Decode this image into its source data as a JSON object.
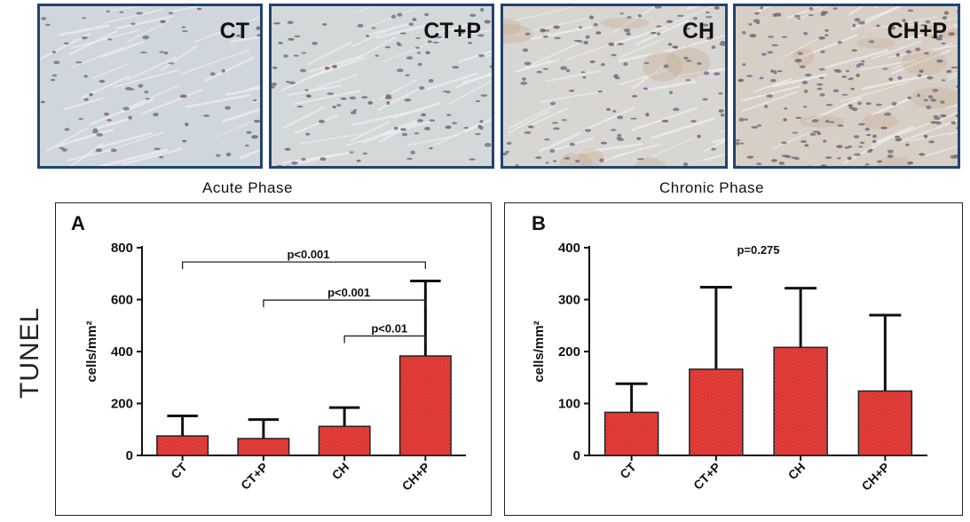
{
  "micrographs": [
    {
      "label": "CT",
      "tone": "#cfd7dc",
      "nuclei": 70
    },
    {
      "label": "CT+P",
      "tone": "#d3d8d9",
      "nuclei": 110
    },
    {
      "label": "CH",
      "tone": "#d8d6d2",
      "nuclei": 120
    },
    {
      "label": "CH+P",
      "tone": "#d7cfc6",
      "nuclei": 200
    }
  ],
  "phases": {
    "acute": "Acute Phase",
    "chronic": "Chronic Phase"
  },
  "row_label": "TUNEL",
  "colors": {
    "bar": "#e8403c",
    "bar_dots": "#b82825",
    "frame": "#22436f"
  },
  "chart_data": [
    {
      "type": "bar",
      "panel_letter": "A",
      "categories": [
        "CT",
        "CT+P",
        "CH",
        "CH+P"
      ],
      "values": [
        75,
        65,
        112,
        383
      ],
      "error_upper": [
        152,
        138,
        184,
        672
      ],
      "ylabel": "cells/mm²",
      "ylim": [
        0,
        800
      ],
      "yticks": [
        0,
        200,
        400,
        600,
        800
      ],
      "annotations": [
        {
          "text": "p<0.001",
          "from": "CT",
          "to": "CH+P",
          "y": 745
        },
        {
          "text": "p<0.001",
          "from": "CT+P",
          "to": "CH+P",
          "y": 598
        },
        {
          "text": "p<0.01",
          "from": "CH",
          "to": "CH+P",
          "y": 460
        }
      ]
    },
    {
      "type": "bar",
      "panel_letter": "B",
      "categories": [
        "CT",
        "CT+P",
        "CH",
        "CH+P"
      ],
      "values": [
        83,
        166,
        208,
        124
      ],
      "error_upper": [
        138,
        324,
        322,
        270
      ],
      "ylabel": "cells/mm²",
      "ylim": [
        0,
        400
      ],
      "yticks": [
        0,
        100,
        200,
        300,
        400
      ],
      "annotations": [
        {
          "text": "p=0.275"
        }
      ]
    }
  ]
}
